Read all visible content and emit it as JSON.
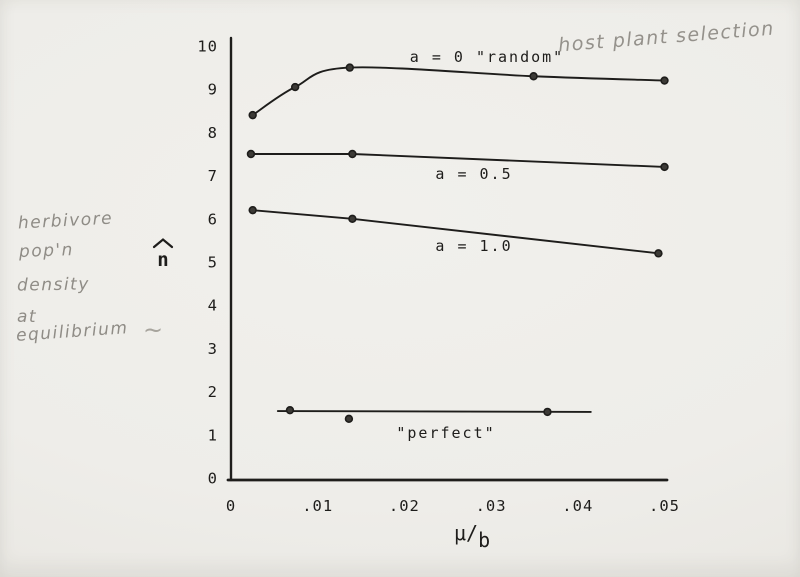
{
  "chart_data": {
    "type": "line",
    "title": "",
    "xlabel": "μ/b",
    "ylabel": "n̂",
    "xlim": [
      0,
      0.05
    ],
    "ylim": [
      0,
      10
    ],
    "grid": false,
    "legend_position": "inline-labels",
    "x_ticks": {
      "labels": [
        "0",
        ".01",
        ".02",
        ".03",
        ".04",
        ".05"
      ],
      "values": [
        0,
        0.01,
        0.02,
        0.03,
        0.04,
        0.05
      ]
    },
    "y_ticks": {
      "labels": [
        "0",
        "1",
        "2",
        "3",
        "4",
        "5",
        "6",
        "7",
        "8",
        "9",
        "10"
      ],
      "values": [
        0,
        1,
        2,
        3,
        4,
        5,
        6,
        7,
        8,
        9,
        10
      ]
    },
    "series": [
      {
        "name": "a-0-random",
        "label": "a = 0  \"random\"",
        "smooth": true,
        "x": [
          0.0025,
          0.0074,
          0.0137,
          0.0349,
          0.05
        ],
        "y": [
          8.4,
          9.05,
          9.5,
          9.3,
          9.2
        ]
      },
      {
        "name": "a-0.5",
        "label": "a = 0.5",
        "smooth": false,
        "x": [
          0.0023,
          0.014,
          0.05
        ],
        "y": [
          7.5,
          7.5,
          7.2
        ]
      },
      {
        "name": "a-1.0",
        "label": "a = 1.0",
        "smooth": false,
        "x": [
          0.0025,
          0.014,
          0.0493
        ],
        "y": [
          6.2,
          6.0,
          5.2
        ]
      },
      {
        "name": "perfect",
        "label": "\"perfect\"",
        "smooth": false,
        "x": [
          0.0068,
          0.0136,
          0.0365
        ],
        "y": [
          1.57,
          1.37,
          1.53
        ],
        "line_x": [
          0.0054,
          0.0415
        ],
        "line_y": [
          1.55,
          1.53
        ]
      }
    ],
    "colors": {
      "ink": "#1e1d1b",
      "marker_fill": "#3c3a36",
      "pencil": "#8f8c86",
      "paper": "#eeede9"
    }
  },
  "annotations": {
    "note_lines": [
      "herbivore",
      "pop'n",
      "density",
      "at",
      "equilibrium"
    ],
    "top_note": "host plant selection",
    "squiggle": "~"
  }
}
